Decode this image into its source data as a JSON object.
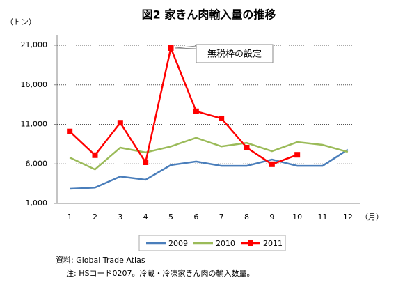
{
  "chart_data": {
    "type": "line",
    "title": "図2 家きん肉輸入量の推移",
    "y_label": "（トン）",
    "x_label": "（月）",
    "categories": [
      "1",
      "2",
      "3",
      "4",
      "5",
      "6",
      "7",
      "8",
      "9",
      "10",
      "11",
      "12"
    ],
    "series": [
      {
        "name": "2009",
        "color": "#4a7ebb",
        "values": [
          2850,
          3000,
          4400,
          4000,
          5850,
          6300,
          5750,
          5750,
          6550,
          5750,
          5750,
          7800
        ]
      },
      {
        "name": "2010",
        "color": "#9bbb59",
        "values": [
          6800,
          5300,
          8050,
          7450,
          8200,
          9300,
          8200,
          8650,
          7600,
          8750,
          8400,
          7500
        ]
      },
      {
        "name": "2011",
        "color": "#ff0000",
        "values": [
          10100,
          7100,
          11200,
          6200,
          20650,
          12650,
          11750,
          8050,
          5950,
          7150,
          null,
          null
        ],
        "markers": true
      }
    ],
    "ylim": [
      1000,
      21000
    ],
    "yticks": [
      {
        "value": 1000,
        "label": "1,000"
      },
      {
        "value": 6000,
        "label": "6,000"
      },
      {
        "value": 11000,
        "label": "11,000"
      },
      {
        "value": 16000,
        "label": "16,000"
      },
      {
        "value": 21000,
        "label": "21,000"
      }
    ],
    "grid": true,
    "annotation": "無税枠の設定",
    "notes": [
      "資料: Global Trade Atlas",
      "注: HSコード0207。冷蔵・冷凍家きん肉の輸入数量。"
    ]
  }
}
